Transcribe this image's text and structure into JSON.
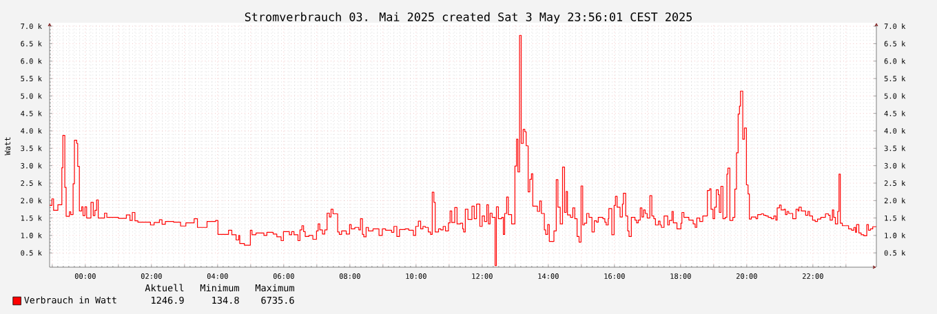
{
  "chart_data": {
    "type": "step",
    "title": "Stromverbrauch 03. Mai 2025 created Sat  3 May 23:56:01 CEST 2025",
    "ylabel": "Watt",
    "xlim": [
      -1.08,
      23.92
    ],
    "ylim": [
      0.09,
      7.1
    ],
    "y2lim": [
      0.09,
      7.1
    ],
    "xticks": [
      {
        "value": -1,
        "label": null
      },
      {
        "value": 0,
        "label": "00:00"
      },
      {
        "value": 1,
        "label": null
      },
      {
        "value": 2,
        "label": "02:00"
      },
      {
        "value": 3,
        "label": null
      },
      {
        "value": 4,
        "label": "04:00"
      },
      {
        "value": 5,
        "label": null
      },
      {
        "value": 6,
        "label": "06:00"
      },
      {
        "value": 7,
        "label": null
      },
      {
        "value": 8,
        "label": "08:00"
      },
      {
        "value": 9,
        "label": null
      },
      {
        "value": 10,
        "label": "10:00"
      },
      {
        "value": 11,
        "label": null
      },
      {
        "value": 12,
        "label": "12:00"
      },
      {
        "value": 13,
        "label": null
      },
      {
        "value": 14,
        "label": "14:00"
      },
      {
        "value": 15,
        "label": null
      },
      {
        "value": 16,
        "label": "16:00"
      },
      {
        "value": 17,
        "label": null
      },
      {
        "value": 18,
        "label": "18:00"
      },
      {
        "value": 19,
        "label": null
      },
      {
        "value": 20,
        "label": "20:00"
      },
      {
        "value": 21,
        "label": null
      },
      {
        "value": 22,
        "label": "22:00"
      },
      {
        "value": 23,
        "label": null
      }
    ],
    "yticks": [
      {
        "value": 0.5,
        "label": "0.5 k"
      },
      {
        "value": 1.0,
        "label": "1.0 k"
      },
      {
        "value": 1.5,
        "label": "1.5 k"
      },
      {
        "value": 2.0,
        "label": "2.0 k"
      },
      {
        "value": 2.5,
        "label": "2.5 k"
      },
      {
        "value": 3.0,
        "label": "3.0 k"
      },
      {
        "value": 3.5,
        "label": "3.5 k"
      },
      {
        "value": 4.0,
        "label": "4.0 k"
      },
      {
        "value": 4.5,
        "label": "4.5 k"
      },
      {
        "value": 5.0,
        "label": "5.0 k"
      },
      {
        "value": 5.5,
        "label": "5.5 k"
      },
      {
        "value": 6.0,
        "label": "6.0 k"
      },
      {
        "value": 6.5,
        "label": "6.5 k"
      },
      {
        "value": 7.0,
        "label": "7.0 k"
      }
    ],
    "y2ticks": [
      {
        "value": 0.5,
        "label": "0.5 k"
      },
      {
        "value": 1.0,
        "label": "1.0 k"
      },
      {
        "value": 1.5,
        "label": "1.5 k"
      },
      {
        "value": 2.0,
        "label": "2.0 k"
      },
      {
        "value": 2.5,
        "label": "2.5 k"
      },
      {
        "value": 3.0,
        "label": "3.0 k"
      },
      {
        "value": 3.5,
        "label": "3.5 k"
      },
      {
        "value": 4.0,
        "label": "4.0 k"
      },
      {
        "value": 4.5,
        "label": "4.5 k"
      },
      {
        "value": 5.0,
        "label": "5.0 k"
      },
      {
        "value": 5.5,
        "label": "5.5 k"
      },
      {
        "value": 6.0,
        "label": "6.0 k"
      },
      {
        "value": 6.5,
        "label": "6.5 k"
      },
      {
        "value": 7.0,
        "label": "7.0 k"
      }
    ],
    "grid": true,
    "legend": "bottom left",
    "annotations": [
      "Aktuell",
      "Minimum",
      "Maximum",
      "1246.9",
      "134.8",
      "6735.6"
    ],
    "series": [
      {
        "name": "Verbrauch in Watt",
        "color": "#ff0000",
        "x": [
          -1.08,
          -1.01,
          -0.96,
          -0.83,
          -0.71,
          -0.68,
          -0.62,
          -0.58,
          -0.48,
          -0.44,
          -0.37,
          -0.33,
          -0.26,
          -0.23,
          -0.18,
          -0.11,
          -0.07,
          -0.01,
          0.04,
          0.17,
          0.24,
          0.29,
          0.34,
          0.39,
          0.58,
          0.65,
          1.0,
          1.24,
          1.35,
          1.42,
          1.5,
          1.59,
          1.97,
          2.08,
          2.24,
          2.32,
          2.42,
          2.67,
          2.88,
          3.04,
          3.29,
          3.39,
          3.68,
          3.94,
          4.01,
          4.33,
          4.43,
          4.56,
          4.64,
          4.67,
          4.81,
          4.99,
          5.04,
          5.16,
          5.4,
          5.49,
          5.68,
          5.79,
          5.92,
          5.99,
          6.17,
          6.24,
          6.31,
          6.43,
          6.49,
          6.55,
          6.6,
          6.65,
          6.76,
          6.88,
          6.99,
          7.04,
          7.09,
          7.17,
          7.24,
          7.31,
          7.38,
          7.43,
          7.49,
          7.63,
          7.68,
          7.75,
          7.89,
          7.99,
          8.04,
          8.15,
          8.27,
          8.32,
          8.38,
          8.42,
          8.49,
          8.56,
          8.7,
          8.88,
          8.98,
          9.08,
          9.26,
          9.33,
          9.42,
          9.5,
          9.67,
          9.78,
          9.92,
          9.99,
          10.07,
          10.14,
          10.21,
          10.28,
          10.37,
          10.44,
          10.49,
          10.54,
          10.58,
          10.68,
          10.75,
          10.82,
          10.89,
          10.98,
          11.03,
          11.08,
          11.17,
          11.24,
          11.34,
          11.41,
          11.44,
          11.49,
          11.57,
          11.69,
          11.76,
          11.83,
          11.93,
          12.0,
          12.07,
          12.14,
          12.19,
          12.24,
          12.3,
          12.39,
          12.43,
          12.49,
          12.59,
          12.64,
          12.68,
          12.74,
          12.79,
          12.89,
          12.99,
          13.04,
          13.08,
          13.13,
          13.18,
          13.24,
          13.29,
          13.33,
          13.39,
          13.44,
          13.49,
          13.53,
          13.67,
          13.74,
          13.79,
          13.88,
          13.92,
          13.98,
          14.03,
          14.17,
          14.24,
          14.29,
          14.36,
          14.43,
          14.49,
          14.54,
          14.58,
          14.67,
          14.74,
          14.8,
          14.87,
          14.93,
          14.99,
          15.04,
          15.09,
          15.16,
          15.23,
          15.32,
          15.39,
          15.46,
          15.51,
          15.65,
          15.71,
          15.75,
          15.81,
          15.83,
          15.92,
          15.99,
          16.03,
          16.08,
          16.17,
          16.24,
          16.27,
          16.34,
          16.4,
          16.44,
          16.51,
          16.62,
          16.67,
          16.72,
          16.78,
          16.83,
          16.88,
          16.93,
          16.99,
          17.07,
          17.13,
          17.19,
          17.24,
          17.33,
          17.38,
          17.42,
          17.5,
          17.61,
          17.66,
          17.74,
          17.78,
          17.89,
          18.01,
          18.04,
          18.1,
          18.25,
          18.38,
          18.44,
          18.49,
          18.58,
          18.67,
          18.81,
          18.88,
          18.92,
          18.98,
          19.03,
          19.08,
          19.14,
          19.17,
          19.22,
          19.28,
          19.35,
          19.4,
          19.43,
          19.49,
          19.58,
          19.64,
          19.69,
          19.74,
          19.78,
          19.81,
          19.88,
          19.93,
          19.99,
          20.04,
          20.08,
          20.14,
          20.28,
          20.33,
          20.44,
          20.51,
          20.58,
          20.65,
          20.74,
          20.82,
          20.88,
          20.92,
          20.99,
          21.04,
          21.13,
          21.17,
          21.22,
          21.27,
          21.39,
          21.49,
          21.55,
          21.58,
          21.65,
          21.78,
          21.85,
          21.9,
          21.99,
          22.07,
          22.14,
          22.24,
          22.38,
          22.47,
          22.52,
          22.59,
          22.63,
          22.68,
          22.75,
          22.79,
          22.83,
          22.89,
          23.08,
          23.17,
          23.24,
          23.29,
          23.32,
          23.39,
          23.46,
          23.54,
          23.63,
          23.68,
          23.74,
          23.81,
          23.92
        ],
        "values": [
          1.86,
          2.05,
          1.72,
          1.88,
          2.94,
          3.87,
          2.38,
          1.55,
          1.68,
          1.6,
          2.48,
          3.73,
          3.64,
          2.98,
          1.7,
          1.82,
          1.57,
          1.82,
          1.5,
          1.95,
          1.57,
          1.72,
          2.02,
          1.5,
          1.64,
          1.52,
          1.49,
          1.59,
          1.43,
          1.66,
          1.42,
          1.38,
          1.3,
          1.37,
          1.45,
          1.32,
          1.4,
          1.38,
          1.27,
          1.36,
          1.48,
          1.23,
          1.4,
          1.43,
          1.03,
          1.15,
          1.02,
          0.87,
          1.0,
          0.77,
          0.72,
          1.15,
          1.02,
          1.07,
          1.0,
          1.09,
          1.04,
          0.96,
          0.85,
          1.11,
          1.02,
          1.11,
          1.02,
          0.85,
          1.16,
          1.28,
          1.11,
          0.97,
          1.0,
          0.89,
          1.13,
          1.33,
          1.16,
          1.04,
          1.16,
          1.64,
          1.53,
          1.75,
          1.62,
          1.1,
          1.03,
          1.13,
          1.04,
          1.31,
          1.19,
          1.23,
          1.16,
          1.48,
          1.03,
          0.96,
          1.23,
          1.13,
          1.19,
          1.0,
          1.19,
          1.15,
          1.09,
          1.26,
          0.97,
          1.17,
          1.19,
          1.15,
          1.0,
          1.26,
          1.41,
          1.19,
          1.26,
          1.23,
          1.1,
          1.03,
          2.24,
          1.95,
          1.1,
          1.19,
          1.16,
          1.26,
          1.13,
          1.36,
          1.7,
          1.37,
          1.8,
          1.33,
          1.35,
          1.19,
          1.1,
          1.75,
          1.46,
          1.84,
          1.48,
          1.9,
          1.26,
          1.56,
          1.4,
          1.88,
          1.33,
          1.64,
          1.52,
          0.135,
          1.82,
          1.48,
          1.52,
          1.03,
          1.63,
          2.1,
          1.6,
          1.33,
          2.99,
          3.76,
          2.82,
          6.74,
          3.64,
          4.04,
          3.97,
          3.57,
          2.25,
          2.61,
          2.77,
          1.84,
          1.69,
          1.99,
          1.63,
          1.16,
          1.03,
          1.31,
          0.83,
          1.13,
          2.6,
          1.81,
          1.33,
          2.96,
          1.66,
          2.26,
          1.59,
          1.52,
          1.79,
          1.48,
          0.97,
          0.81,
          2.42,
          1.3,
          1.35,
          1.63,
          1.52,
          1.1,
          1.42,
          1.38,
          1.52,
          1.48,
          1.38,
          1.3,
          1.48,
          1.77,
          1.02,
          1.86,
          2.12,
          1.81,
          1.53,
          1.9,
          2.21,
          1.56,
          1.13,
          0.97,
          1.52,
          1.44,
          1.36,
          1.44,
          1.79,
          1.53,
          1.73,
          1.63,
          1.5,
          2.14,
          1.56,
          1.48,
          1.3,
          1.41,
          1.3,
          1.23,
          1.56,
          1.3,
          1.43,
          1.69,
          1.36,
          1.19,
          1.35,
          1.66,
          1.52,
          1.44,
          1.33,
          1.23,
          1.5,
          1.4,
          1.56,
          2.29,
          2.34,
          1.75,
          1.48,
          1.81,
          2.31,
          2.17,
          1.66,
          2.41,
          1.48,
          1.52,
          2.76,
          2.93,
          1.43,
          1.52,
          2.33,
          3.37,
          4.48,
          4.71,
          5.14,
          3.76,
          4.08,
          2.45,
          2.19,
          1.47,
          1.53,
          1.48,
          1.6,
          1.62,
          1.58,
          1.56,
          1.52,
          1.48,
          1.56,
          1.44,
          1.79,
          1.87,
          1.73,
          1.75,
          1.6,
          1.69,
          1.63,
          1.48,
          1.75,
          1.7,
          1.81,
          1.7,
          1.58,
          1.69,
          1.56,
          1.44,
          1.4,
          1.47,
          1.52,
          1.62,
          1.58,
          1.44,
          1.73,
          1.52,
          1.33,
          1.69,
          2.76,
          1.35,
          1.28,
          1.19,
          1.15,
          1.23,
          1.09,
          1.31,
          1.07,
          1.02,
          0.99,
          1.31,
          1.15,
          1.19,
          1.25,
          1.25
        ]
      }
    ]
  }
}
